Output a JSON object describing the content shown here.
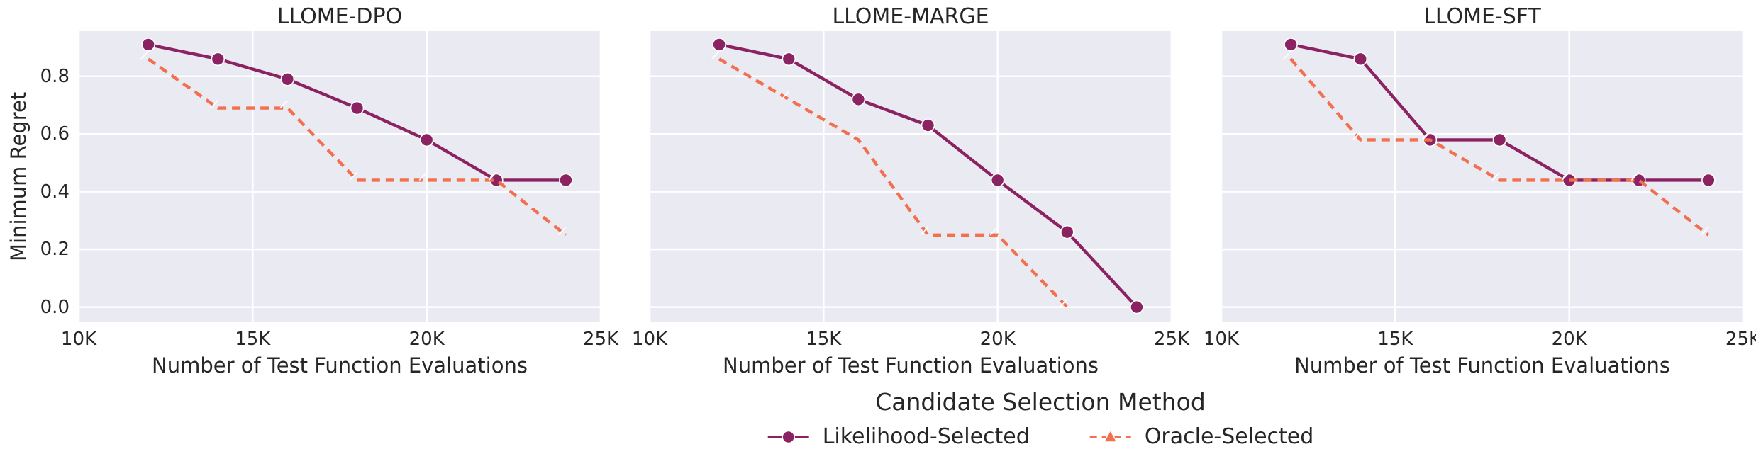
{
  "figure": {
    "ylabel": "Minimum Regret",
    "y_tick_labels": [
      "0.8",
      "0.6",
      "0.4",
      "0.2",
      "0.0"
    ],
    "legend": {
      "title": "Candidate Selection Method",
      "entries": [
        {
          "label": "Likelihood-Selected",
          "color": "#8b2363",
          "marker": "circle",
          "linestyle": "solid"
        },
        {
          "label": "Oracle-Selected",
          "color": "#f2704f",
          "marker": "triangle",
          "linestyle": "dashed"
        }
      ]
    },
    "colors": {
      "plot_background": "#eaeaf2",
      "grid": "#ffffff",
      "text": "#262626",
      "marker_edge": "#ffffff"
    }
  },
  "chart_data": [
    {
      "type": "line",
      "title": "LLOME-DPO",
      "xlabel": "Number of Test Function Evaluations",
      "ylabel": "Minimum Regret",
      "xlim": [
        10000,
        25000
      ],
      "ylim": [
        -0.0525,
        0.9565
      ],
      "x_tick_values": [
        10000,
        15000,
        20000,
        25000
      ],
      "x_tick_labels": [
        "10K",
        "15K",
        "20K",
        "25K"
      ],
      "y_tick_values": [
        0.0,
        0.2,
        0.4,
        0.6,
        0.8
      ],
      "grid": true,
      "legend_position": "bottom",
      "series": [
        {
          "name": "Likelihood-Selected",
          "color": "#8b2363",
          "marker": "circle",
          "linestyle": "solid",
          "x": [
            12000,
            14000,
            16000,
            18000,
            20000,
            22000,
            24000
          ],
          "values": [
            0.91,
            0.86,
            0.79,
            0.69,
            0.58,
            0.44,
            0.44
          ]
        },
        {
          "name": "Oracle-Selected",
          "color": "#f2704f",
          "marker": "triangle",
          "linestyle": "dashed",
          "x": [
            12000,
            14000,
            16000,
            18000,
            20000,
            22000,
            24000
          ],
          "values": [
            0.86,
            0.69,
            0.69,
            0.44,
            0.44,
            0.44,
            0.25
          ]
        }
      ]
    },
    {
      "type": "line",
      "title": "LLOME-MARGE",
      "xlabel": "Number of Test Function Evaluations",
      "ylabel": "Minimum Regret",
      "xlim": [
        10000,
        25000
      ],
      "ylim": [
        -0.0525,
        0.9565
      ],
      "x_tick_values": [
        10000,
        15000,
        20000,
        25000
      ],
      "x_tick_labels": [
        "10K",
        "15K",
        "20K",
        "25K"
      ],
      "y_tick_values": [
        0.0,
        0.2,
        0.4,
        0.6,
        0.8
      ],
      "grid": true,
      "legend_position": "bottom",
      "series": [
        {
          "name": "Likelihood-Selected",
          "color": "#8b2363",
          "marker": "circle",
          "linestyle": "solid",
          "x": [
            12000,
            14000,
            16000,
            18000,
            20000,
            22000,
            24000
          ],
          "values": [
            0.91,
            0.86,
            0.72,
            0.63,
            0.44,
            0.26,
            0.0
          ]
        },
        {
          "name": "Oracle-Selected",
          "color": "#f2704f",
          "marker": "triangle",
          "linestyle": "dashed",
          "x": [
            12000,
            14000,
            16000,
            18000,
            20000,
            22000
          ],
          "values": [
            0.86,
            0.72,
            0.58,
            0.25,
            0.25,
            0.0
          ]
        }
      ]
    },
    {
      "type": "line",
      "title": "LLOME-SFT",
      "xlabel": "Number of Test Function Evaluations",
      "ylabel": "Minimum Regret",
      "xlim": [
        10000,
        25000
      ],
      "ylim": [
        -0.0525,
        0.9565
      ],
      "x_tick_values": [
        10000,
        15000,
        20000,
        25000
      ],
      "x_tick_labels": [
        "10K",
        "15K",
        "20K",
        "25K"
      ],
      "y_tick_values": [
        0.0,
        0.2,
        0.4,
        0.6,
        0.8
      ],
      "grid": true,
      "legend_position": "bottom",
      "series": [
        {
          "name": "Likelihood-Selected",
          "color": "#8b2363",
          "marker": "circle",
          "linestyle": "solid",
          "x": [
            12000,
            14000,
            16000,
            18000,
            20000,
            22000,
            24000
          ],
          "values": [
            0.91,
            0.86,
            0.58,
            0.58,
            0.44,
            0.44,
            0.44
          ]
        },
        {
          "name": "Oracle-Selected",
          "color": "#f2704f",
          "marker": "triangle",
          "linestyle": "dashed",
          "x": [
            12000,
            14000,
            16000,
            18000,
            20000,
            22000,
            24000
          ],
          "values": [
            0.86,
            0.58,
            0.58,
            0.44,
            0.44,
            0.44,
            0.25
          ]
        }
      ]
    }
  ]
}
